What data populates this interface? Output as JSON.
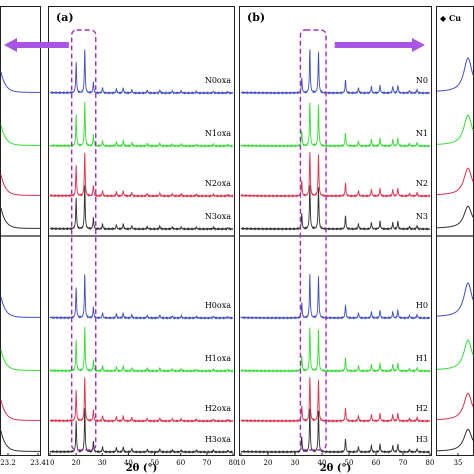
{
  "chart_data": [
    {
      "type": "line",
      "panel_label": "",
      "xlim": [
        23.2,
        23.4
      ],
      "x_tick_labels": [
        "23.2",
        "23.4"
      ],
      "series": [
        {
          "name": "N0oxa",
          "color": "#3f4fc4"
        },
        {
          "name": "N1oxa",
          "color": "#33dd33"
        },
        {
          "name": "N2oxa",
          "color": "#e0304a"
        },
        {
          "name": "N3oxa",
          "color": "#303030"
        },
        {
          "name": "H0oxa",
          "color": "#3f4fc4"
        },
        {
          "name": "H1oxa",
          "color": "#33dd33"
        },
        {
          "name": "H2oxa",
          "color": "#e0304a"
        },
        {
          "name": "H3oxa",
          "color": "#303030"
        }
      ]
    },
    {
      "type": "line",
      "panel_label": "(a)",
      "xlim": [
        10,
        80
      ],
      "x_ticks": [
        10,
        20,
        30,
        40,
        50,
        60,
        70,
        80
      ],
      "xlabel": "2θ (°)",
      "peaks": [
        [
          20.0,
          0.7
        ],
        [
          23.3,
          1.0
        ],
        [
          26.6,
          0.25
        ],
        [
          30.1,
          0.12
        ],
        [
          35.4,
          0.1
        ],
        [
          38.0,
          0.12
        ],
        [
          41.3,
          0.08
        ],
        [
          47.2,
          0.06
        ],
        [
          52.0,
          0.07
        ],
        [
          56.8,
          0.05
        ],
        [
          60.2,
          0.05
        ],
        [
          66.0,
          0.04
        ],
        [
          72.5,
          0.04
        ],
        [
          78.0,
          0.03
        ]
      ],
      "highlight_x_range": [
        18.3,
        27.5
      ],
      "series": [
        {
          "name": "N0oxa",
          "color": "#3f4fc4"
        },
        {
          "name": "N1oxa",
          "color": "#33dd33"
        },
        {
          "name": "N2oxa",
          "color": "#e0304a"
        },
        {
          "name": "N3oxa",
          "color": "#303030"
        },
        {
          "name": "H0oxa",
          "color": "#3f4fc4"
        },
        {
          "name": "H1oxa",
          "color": "#33dd33"
        },
        {
          "name": "H2oxa",
          "color": "#e0304a"
        },
        {
          "name": "H3oxa",
          "color": "#303030"
        }
      ]
    },
    {
      "type": "line",
      "panel_label": "(b)",
      "xlim": [
        10,
        80
      ],
      "x_ticks": [
        10,
        20,
        30,
        40,
        50,
        60,
        70,
        80
      ],
      "xlabel": "2θ (°)",
      "peaks": [
        [
          32.5,
          0.35
        ],
        [
          35.5,
          1.0
        ],
        [
          38.7,
          0.95
        ],
        [
          48.7,
          0.3
        ],
        [
          53.5,
          0.12
        ],
        [
          58.3,
          0.15
        ],
        [
          61.5,
          0.18
        ],
        [
          66.2,
          0.15
        ],
        [
          68.1,
          0.18
        ],
        [
          72.4,
          0.06
        ],
        [
          75.2,
          0.08
        ]
      ],
      "highlight_x_range": [
        32.0,
        41.5
      ],
      "series": [
        {
          "name": "N0",
          "color": "#3f4fc4"
        },
        {
          "name": "N1",
          "color": "#33dd33"
        },
        {
          "name": "N2",
          "color": "#e0304a"
        },
        {
          "name": "N3",
          "color": "#303030"
        },
        {
          "name": "H0",
          "color": "#3f4fc4"
        },
        {
          "name": "H1",
          "color": "#33dd33"
        },
        {
          "name": "H2",
          "color": "#e0304a"
        },
        {
          "name": "H3",
          "color": "#303030"
        }
      ]
    },
    {
      "type": "line",
      "panel_label": "",
      "legend": "◆ Cu",
      "x_tick_labels": [
        "35"
      ],
      "series": [
        {
          "name": "N0",
          "color": "#3f4fc4"
        },
        {
          "name": "N1",
          "color": "#33dd33"
        },
        {
          "name": "N2",
          "color": "#e0304a"
        },
        {
          "name": "N3",
          "color": "#303030"
        },
        {
          "name": "H0",
          "color": "#3f4fc4"
        },
        {
          "name": "H1",
          "color": "#33dd33"
        },
        {
          "name": "H2",
          "color": "#e0304a"
        },
        {
          "name": "H3",
          "color": "#303030"
        }
      ]
    }
  ],
  "colors": {
    "arrow": "#a855e6",
    "highlight_box": "#a030c0"
  }
}
